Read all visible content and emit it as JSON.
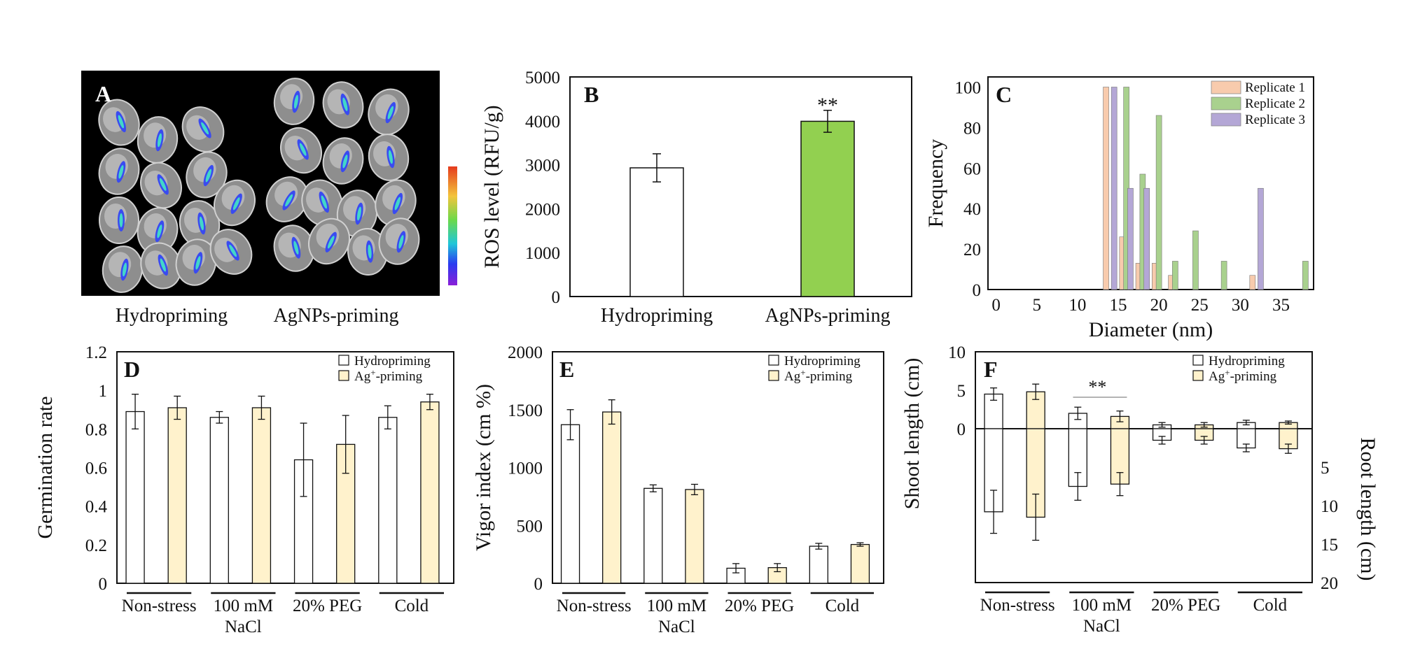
{
  "colors": {
    "hydro": "#ffffff",
    "agnp_green": "#92d050",
    "ag_priming": "#fff2cc",
    "rep1": "#f8cbad",
    "rep2": "#a9d18e",
    "rep3": "#b4a7d6",
    "axis": "#111111"
  },
  "chart_data": [
    {
      "panel": "A",
      "type": "image",
      "labels": [
        "Hydropriming",
        "AgNPs-priming"
      ],
      "colorbar": true
    },
    {
      "panel": "B",
      "type": "bar",
      "categories": [
        "Hydropriming",
        "AgNPs-priming"
      ],
      "values": [
        2930,
        3990
      ],
      "errors": [
        320,
        250
      ],
      "ylabel": "ROS level (RFU/g)",
      "ylim": [
        0,
        5000
      ],
      "yticks": [
        "5000",
        "4000",
        "3000",
        "2000",
        "1000",
        "0"
      ],
      "annotations": [
        "**"
      ]
    },
    {
      "panel": "C",
      "type": "bar",
      "xlabel": "Diameter (nm)",
      "ylabel": "Frequency",
      "xlim": [
        -1,
        39
      ],
      "ylim": [
        0,
        105
      ],
      "xticks": [
        "0",
        "5",
        "10",
        "15",
        "20",
        "25",
        "30",
        "35"
      ],
      "yticks": [
        "100",
        "80",
        "60",
        "40",
        "20",
        "0"
      ],
      "series": [
        {
          "name": "Replicate 1",
          "x": [
            13.5,
            15.5,
            17.5,
            19.5,
            21.5,
            31.5
          ],
          "values": [
            100,
            26,
            13,
            13,
            7,
            7
          ]
        },
        {
          "name": "Replicate 2",
          "x": [
            16.0,
            18.0,
            20.0,
            22.0,
            24.5,
            28.0,
            38.0
          ],
          "values": [
            100,
            57,
            86,
            14,
            29,
            14,
            14
          ]
        },
        {
          "name": "Replicate 3",
          "x": [
            14.5,
            16.5,
            18.5,
            32.5
          ],
          "values": [
            100,
            50,
            50,
            50
          ]
        }
      ]
    },
    {
      "panel": "D",
      "type": "bar",
      "ylabel": "Germination rate",
      "ylim": [
        0,
        1.2
      ],
      "yticks": [
        "1.2",
        "1",
        "0.8",
        "0.6",
        "0.4",
        "0.2",
        "0"
      ],
      "groups": [
        "Non-stress",
        "100 mM",
        "20% PEG",
        "Cold"
      ],
      "group_sub": [
        "",
        "NaCl",
        "",
        ""
      ],
      "series": [
        {
          "name": "Hydropriming",
          "values": [
            0.89,
            0.86,
            0.64,
            0.86
          ],
          "errors": [
            0.09,
            0.03,
            0.19,
            0.06
          ]
        },
        {
          "name": "Ag+-priming",
          "values": [
            0.91,
            0.91,
            0.72,
            0.94
          ],
          "errors": [
            0.06,
            0.06,
            0.15,
            0.04
          ]
        }
      ],
      "legend": [
        "Hydropriming",
        "Ag",
        "+",
        "-priming"
      ]
    },
    {
      "panel": "E",
      "type": "bar",
      "ylabel": "Vigor index (cm %)",
      "ylim": [
        0,
        2000
      ],
      "yticks": [
        "2000",
        "1500",
        "1000",
        "500",
        "0"
      ],
      "groups": [
        "Non-stress",
        "100 mM",
        "20% PEG",
        "Cold"
      ],
      "group_sub": [
        "",
        "NaCl",
        "",
        ""
      ],
      "series": [
        {
          "name": "Hydropriming",
          "values": [
            1370,
            820,
            130,
            320
          ],
          "errors": [
            130,
            30,
            40,
            25
          ]
        },
        {
          "name": "Ag+-priming",
          "values": [
            1480,
            810,
            135,
            335
          ],
          "errors": [
            105,
            45,
            35,
            15
          ]
        }
      ],
      "legend": [
        "Hydropriming",
        "Ag",
        "+",
        "-priming"
      ]
    },
    {
      "panel": "F",
      "type": "bar",
      "ylabel": "Shoot length (cm)",
      "ylabel2": "Root length (cm)",
      "ylim": [
        -20,
        10
      ],
      "yticks_shoot": [
        "10",
        "5",
        "0"
      ],
      "yticks_root": [
        "5",
        "10",
        "15",
        "20"
      ],
      "groups": [
        "Non-stress",
        "100 mM",
        "20% PEG",
        "Cold"
      ],
      "group_sub": [
        "",
        "NaCl",
        "",
        ""
      ],
      "series": [
        {
          "name": "Hydropriming",
          "shoot": [
            4.5,
            2.0,
            0.5,
            0.8
          ],
          "shoot_err": [
            0.8,
            0.8,
            0.3,
            0.3
          ],
          "root": [
            10.8,
            7.5,
            1.5,
            2.5
          ],
          "root_err": [
            2.8,
            1.8,
            0.5,
            0.5
          ]
        },
        {
          "name": "Ag+-priming",
          "shoot": [
            4.8,
            1.6,
            0.5,
            0.8
          ],
          "shoot_err": [
            1.0,
            0.7,
            0.3,
            0.2
          ],
          "root": [
            11.5,
            7.2,
            1.5,
            2.6
          ],
          "root_err": [
            3.0,
            1.5,
            0.5,
            0.6
          ]
        }
      ],
      "annotations": [
        "**"
      ],
      "legend": [
        "Hydropriming",
        "Ag",
        "+",
        "-priming"
      ]
    }
  ]
}
